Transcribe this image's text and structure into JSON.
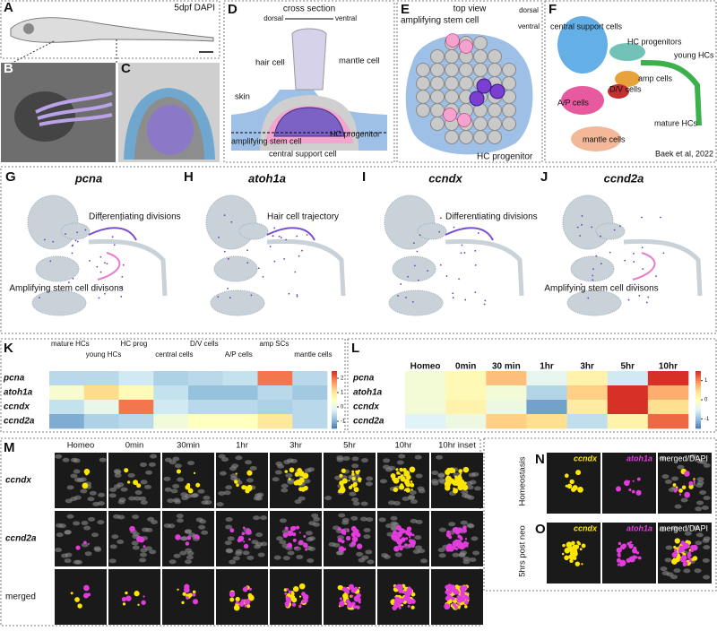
{
  "panel_labels": [
    "A",
    "B",
    "C",
    "D",
    "E",
    "F",
    "G",
    "H",
    "I",
    "J",
    "K",
    "L",
    "M",
    "N",
    "O"
  ],
  "panel_a": {
    "label": "5dpf DAPI"
  },
  "panel_d": {
    "title": "cross section",
    "dorsal": "dorsal",
    "ventral": "ventral",
    "labels": [
      "hair cell",
      "mantle cell",
      "skin",
      "amplifying stem cell",
      "HC progenitor",
      "central support cell"
    ]
  },
  "panel_e": {
    "title": "top view",
    "dorsal": "dorsal",
    "ventral": "ventral",
    "labels": [
      "amplifying stem cell",
      "HC progenitor"
    ]
  },
  "panel_f": {
    "labels": [
      "central support cells",
      "HC progenitors",
      "young HCs",
      "amp cells",
      "D/V cells",
      "A/P cells",
      "mature HCs",
      "mantle cells"
    ],
    "citation": "Baek et al, 2022"
  },
  "umaps": [
    {
      "gene": "pcna",
      "annotations": [
        "Differentiating divisions",
        "Amplifying stem cell divisons"
      ]
    },
    {
      "gene": "atoh1a",
      "annotations": [
        "Hair cell trajectory"
      ]
    },
    {
      "gene": "ccndx",
      "annotations": [
        "Differentiating divisions"
      ]
    },
    {
      "gene": "ccnd2a",
      "annotations": [
        "Amplifying stem cell divisons"
      ]
    }
  ],
  "heatmap_k": {
    "columns": [
      "mature HCs",
      "young HCs",
      "HC prog",
      "central cells",
      "D/V cells",
      "A/P cells",
      "amp SCs",
      "mantle cells"
    ],
    "rows": [
      "pcna",
      "atoh1a",
      "ccndx",
      "ccnd2a"
    ],
    "values": [
      [
        -0.5,
        -0.5,
        -0.3,
        -0.6,
        -0.5,
        -0.4,
        2,
        -0.5
      ],
      [
        0.3,
        1.2,
        0.6,
        -0.4,
        -0.8,
        -0.8,
        -0.5,
        -0.7
      ],
      [
        -0.4,
        0,
        2,
        -0.3,
        -0.5,
        -0.5,
        -0.6,
        -0.5
      ],
      [
        -1,
        -0.6,
        -0.5,
        0.2,
        0.5,
        0.5,
        1,
        -0.5
      ]
    ],
    "colorbar_lim": [
      -1.5,
      2.5
    ],
    "colorbar_ticks": [
      -1,
      0,
      1,
      2
    ]
  },
  "heatmap_l": {
    "columns": [
      "Homeo",
      "0min",
      "30 min",
      "1hr",
      "3hr",
      "5hr",
      "10hr"
    ],
    "rows": [
      "pcna",
      "atoh1a",
      "ccndx",
      "ccnd2a"
    ],
    "values": [
      [
        -0.2,
        0.1,
        0.7,
        -0.4,
        0.2,
        -0.6,
        1.5
      ],
      [
        -0.2,
        0.1,
        -0.2,
        -0.8,
        0.6,
        1.5,
        0.8
      ],
      [
        -0.2,
        0.2,
        -0.3,
        -1.2,
        0.3,
        1.6,
        0.5
      ],
      [
        -0.5,
        -0.3,
        0.6,
        0.5,
        -0.7,
        0.2,
        1.2
      ]
    ],
    "colorbar_lim": [
      -1.5,
      1.5
    ],
    "colorbar_ticks": [
      -1,
      0,
      1
    ]
  },
  "panel_m": {
    "columns": [
      "Homeo",
      "0min",
      "30min",
      "1hr",
      "3hr",
      "5hr",
      "10hr",
      "10hr inset"
    ],
    "rows": [
      "ccndx",
      "ccnd2a",
      "merged"
    ]
  },
  "panel_no": {
    "columns": [
      "ccndx",
      "atoh1a",
      "merged/DAPI"
    ],
    "rows": [
      "Homeostasis",
      "5hrs post neo"
    ]
  }
}
